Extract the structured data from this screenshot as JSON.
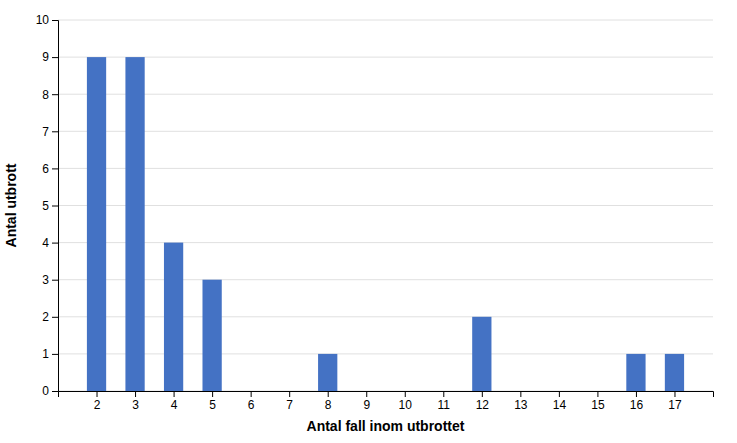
{
  "chart_data": {
    "type": "bar",
    "x": [
      2,
      3,
      4,
      5,
      6,
      7,
      8,
      9,
      10,
      11,
      12,
      13,
      14,
      15,
      16,
      17
    ],
    "values": [
      9,
      9,
      4,
      3,
      0,
      0,
      1,
      0,
      0,
      0,
      2,
      0,
      0,
      0,
      1,
      1
    ],
    "color": "#4472C4",
    "xlabel": "Antal fall inom utbrottet",
    "ylabel": "Antal utbrott",
    "xlim": [
      1,
      18
    ],
    "xticks": [
      2,
      3,
      4,
      5,
      6,
      7,
      8,
      9,
      10,
      11,
      12,
      13,
      14,
      15,
      16,
      17
    ],
    "ylim": [
      0,
      10
    ],
    "yticks": [
      0,
      1,
      2,
      3,
      4,
      5,
      6,
      7,
      8,
      9,
      10
    ],
    "grid": true
  }
}
